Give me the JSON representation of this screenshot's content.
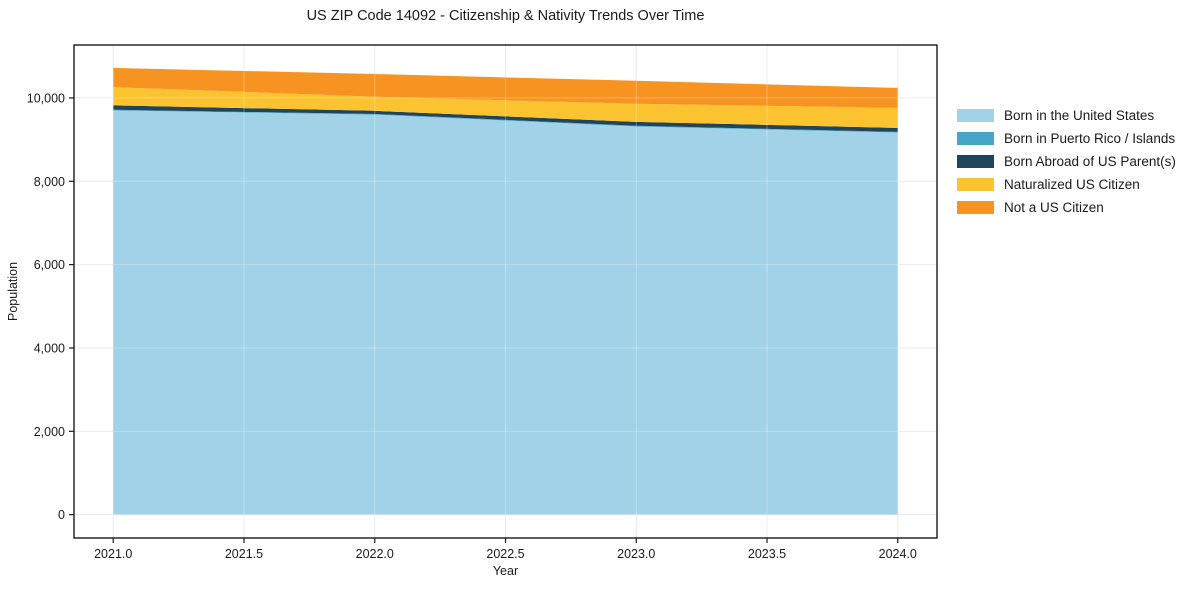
{
  "chart_data": {
    "type": "area",
    "stacked": true,
    "title": "US ZIP Code 14092 - Citizenship & Nativity Trends Over Time",
    "xlabel": "Year",
    "ylabel": "Population",
    "x": [
      2021,
      2022,
      2023,
      2024
    ],
    "series": [
      {
        "name": "Born in the United States",
        "color": "#a1d2e8",
        "values": [
          9700,
          9600,
          9315,
          9170
        ]
      },
      {
        "name": "Born in Puerto Rico / Islands",
        "color": "#45a5c7",
        "values": [
          15,
          15,
          15,
          15
        ]
      },
      {
        "name": "Born Abroad of US Parent(s)",
        "color": "#20455a",
        "values": [
          105,
          75,
          95,
          95
        ]
      },
      {
        "name": "Naturalized US Citizen",
        "color": "#fcc330",
        "values": [
          440,
          340,
          435,
          480
        ]
      },
      {
        "name": "Not a US Citizen",
        "color": "#f79320",
        "values": [
          460,
          545,
          550,
          480
        ]
      }
    ],
    "totals": [
      10720,
      10575,
      10410,
      10240
    ],
    "x_ticks": [
      2021.0,
      2021.5,
      2022.0,
      2022.5,
      2023.0,
      2023.5,
      2024.0
    ],
    "y_ticks": [
      0,
      2000,
      4000,
      6000,
      8000,
      10000
    ],
    "xlim": [
      2020.85,
      2024.15
    ],
    "ylim": [
      -560,
      11270
    ],
    "grid": true,
    "legend_position": "right-outside",
    "colors": {
      "frame": "#1a1a1a",
      "grid": "#e4e4e4",
      "text": "#1a1a1a",
      "background": "#ffffff"
    }
  }
}
